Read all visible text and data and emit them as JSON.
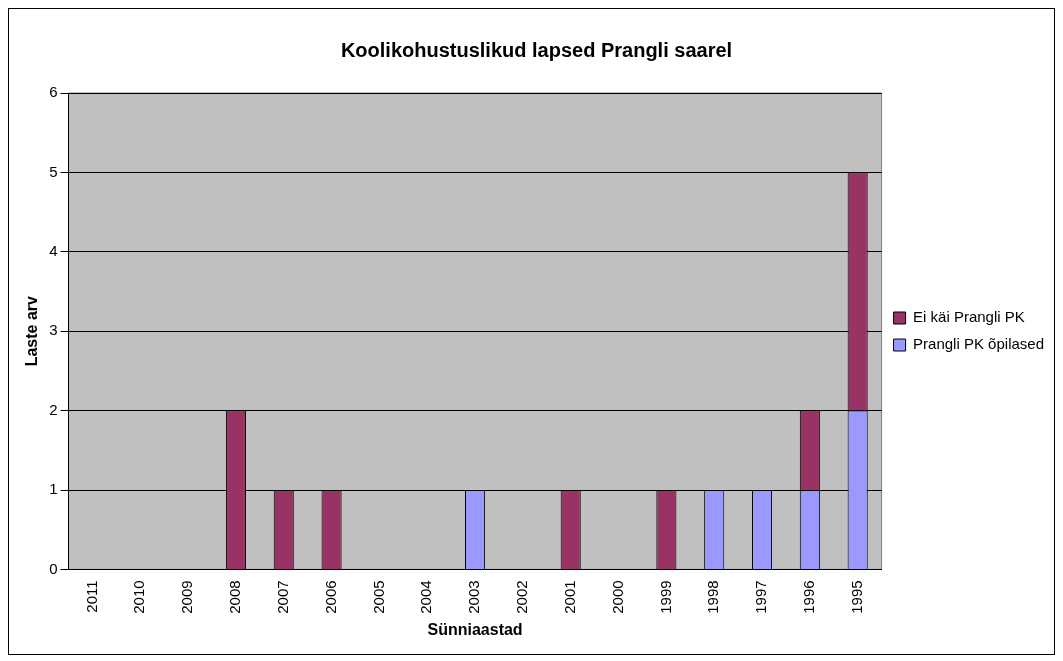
{
  "chart_data": {
    "type": "bar",
    "title": "Koolikohustuslikud lapsed Prangli saarel",
    "xlabel": "Sünniaastad",
    "ylabel": "Laste arv",
    "categories": [
      "2011",
      "2010",
      "2009",
      "2008",
      "2007",
      "2006",
      "2005",
      "2004",
      "2003",
      "2002",
      "2001",
      "2000",
      "1999",
      "1998",
      "1997",
      "1996",
      "1995"
    ],
    "stacked": true,
    "series": [
      {
        "name": "Prangli PK õpilased",
        "color": "#9999ff",
        "values": [
          0,
          0,
          0,
          0,
          0,
          0,
          0,
          0,
          1,
          0,
          0,
          0,
          0,
          1,
          1,
          1,
          2
        ]
      },
      {
        "name": "Ei käi Prangli PK",
        "color": "#993366",
        "values": [
          0,
          0,
          0,
          2,
          1,
          1,
          0,
          0,
          0,
          0,
          1,
          0,
          1,
          0,
          0,
          1,
          3
        ]
      }
    ],
    "ylim": [
      0,
      6
    ],
    "yticks": [
      0,
      1,
      2,
      3,
      4,
      5,
      6
    ],
    "grid": "y",
    "legend": "right"
  }
}
